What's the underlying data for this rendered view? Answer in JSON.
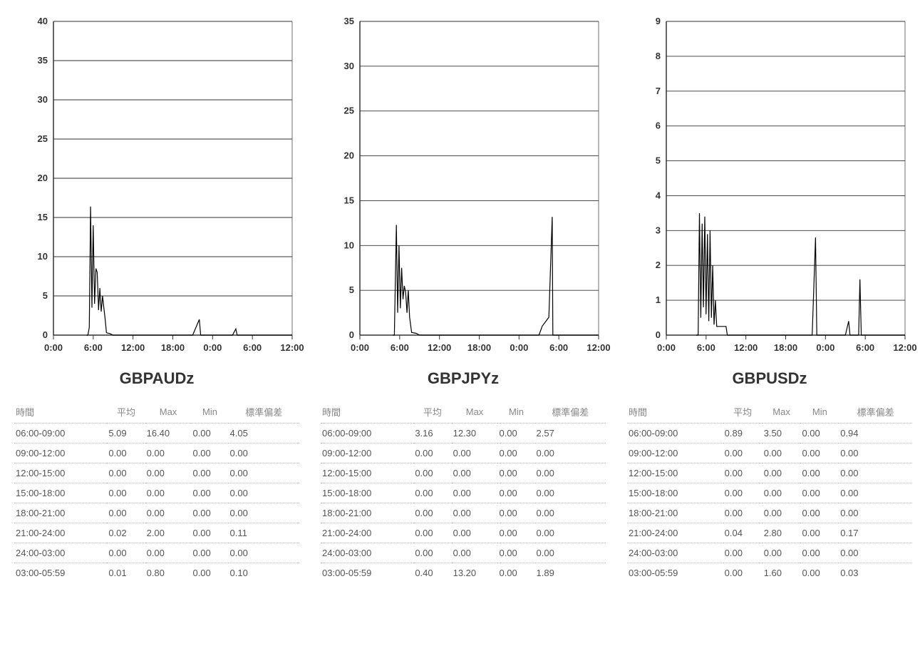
{
  "background_color": "#ffffff",
  "axis_color": "#333333",
  "grid_color": "#333333",
  "line_color": "#000000",
  "tick_font_size": 11,
  "label_font_weight": "bold",
  "label_font_size": 13,
  "title_font_size": 22,
  "table_header_color": "#888888",
  "table_text_color": "#555555",
  "table_border": "1px dotted #bbbbbb",
  "x_ticks": [
    "0:00",
    "6:00",
    "12:00",
    "18:00",
    "0:00",
    "6:00",
    "12:00"
  ],
  "table_headers": [
    "時間",
    "平均",
    "Max",
    "Min",
    "標準偏差"
  ],
  "panels": [
    {
      "title": "GBPAUDz",
      "ymax": 40,
      "ystep": 5,
      "series": [
        [
          5.0,
          0.0
        ],
        [
          5.2,
          0.0
        ],
        [
          5.4,
          1.0
        ],
        [
          5.6,
          16.4
        ],
        [
          5.8,
          3.5
        ],
        [
          6.0,
          14.0
        ],
        [
          6.2,
          4.0
        ],
        [
          6.4,
          8.5
        ],
        [
          6.6,
          8.0
        ],
        [
          6.8,
          3.2
        ],
        [
          7.0,
          6.0
        ],
        [
          7.2,
          3.0
        ],
        [
          7.4,
          5.0
        ],
        [
          7.6,
          3.5
        ],
        [
          7.8,
          2.0
        ],
        [
          8.0,
          0.3
        ],
        [
          8.5,
          0.2
        ],
        [
          9.0,
          0.0
        ],
        [
          12.0,
          0.0
        ],
        [
          18.0,
          0.0
        ],
        [
          21.0,
          0.0
        ],
        [
          22.0,
          2.0
        ],
        [
          22.2,
          0.0
        ],
        [
          24.0,
          0.0
        ],
        [
          27.0,
          0.0
        ],
        [
          27.5,
          0.8
        ],
        [
          27.7,
          0.0
        ],
        [
          30.0,
          0.0
        ],
        [
          36.0,
          0.0
        ]
      ],
      "rows": [
        [
          "06:00-09:00",
          "5.09",
          "16.40",
          "0.00",
          "4.05"
        ],
        [
          "09:00-12:00",
          "0.00",
          "0.00",
          "0.00",
          "0.00"
        ],
        [
          "12:00-15:00",
          "0.00",
          "0.00",
          "0.00",
          "0.00"
        ],
        [
          "15:00-18:00",
          "0.00",
          "0.00",
          "0.00",
          "0.00"
        ],
        [
          "18:00-21:00",
          "0.00",
          "0.00",
          "0.00",
          "0.00"
        ],
        [
          "21:00-24:00",
          "0.02",
          "2.00",
          "0.00",
          "0.11"
        ],
        [
          "24:00-03:00",
          "0.00",
          "0.00",
          "0.00",
          "0.00"
        ],
        [
          "03:00-05:59",
          "0.01",
          "0.80",
          "0.00",
          "0.10"
        ]
      ]
    },
    {
      "title": "GBPJPYz",
      "ymax": 35,
      "ystep": 5,
      "series": [
        [
          5.0,
          0.0
        ],
        [
          5.2,
          0.0
        ],
        [
          5.5,
          12.3
        ],
        [
          5.7,
          2.5
        ],
        [
          5.9,
          10.0
        ],
        [
          6.1,
          3.0
        ],
        [
          6.3,
          7.5
        ],
        [
          6.5,
          4.0
        ],
        [
          6.7,
          5.5
        ],
        [
          6.9,
          4.8
        ],
        [
          7.1,
          2.5
        ],
        [
          7.3,
          5.0
        ],
        [
          7.5,
          2.0
        ],
        [
          7.8,
          0.3
        ],
        [
          8.5,
          0.2
        ],
        [
          9.0,
          0.0
        ],
        [
          12.0,
          0.0
        ],
        [
          18.0,
          0.0
        ],
        [
          24.0,
          0.0
        ],
        [
          27.0,
          0.0
        ],
        [
          27.5,
          1.0
        ],
        [
          28.0,
          1.5
        ],
        [
          28.5,
          2.0
        ],
        [
          29.0,
          13.2
        ],
        [
          29.1,
          0.0
        ],
        [
          30.0,
          0.0
        ],
        [
          36.0,
          0.0
        ]
      ],
      "rows": [
        [
          "06:00-09:00",
          "3.16",
          "12.30",
          "0.00",
          "2.57"
        ],
        [
          "09:00-12:00",
          "0.00",
          "0.00",
          "0.00",
          "0.00"
        ],
        [
          "12:00-15:00",
          "0.00",
          "0.00",
          "0.00",
          "0.00"
        ],
        [
          "15:00-18:00",
          "0.00",
          "0.00",
          "0.00",
          "0.00"
        ],
        [
          "18:00-21:00",
          "0.00",
          "0.00",
          "0.00",
          "0.00"
        ],
        [
          "21:00-24:00",
          "0.00",
          "0.00",
          "0.00",
          "0.00"
        ],
        [
          "24:00-03:00",
          "0.00",
          "0.00",
          "0.00",
          "0.00"
        ],
        [
          "03:00-05:59",
          "0.40",
          "13.20",
          "0.00",
          "1.89"
        ]
      ]
    },
    {
      "title": "GBPUSDz",
      "ymax": 9,
      "ystep": 1,
      "series": [
        [
          4.5,
          0.0
        ],
        [
          4.8,
          0.0
        ],
        [
          5.0,
          3.5
        ],
        [
          5.2,
          0.5
        ],
        [
          5.4,
          3.2
        ],
        [
          5.6,
          0.8
        ],
        [
          5.8,
          3.4
        ],
        [
          6.0,
          0.6
        ],
        [
          6.2,
          2.9
        ],
        [
          6.4,
          0.4
        ],
        [
          6.6,
          3.0
        ],
        [
          6.8,
          0.5
        ],
        [
          7.0,
          2.0
        ],
        [
          7.2,
          0.3
        ],
        [
          7.4,
          1.0
        ],
        [
          7.6,
          0.25
        ],
        [
          8.0,
          0.25
        ],
        [
          8.5,
          0.25
        ],
        [
          9.0,
          0.25
        ],
        [
          9.2,
          0.0
        ],
        [
          12.0,
          0.0
        ],
        [
          18.0,
          0.0
        ],
        [
          22.0,
          0.0
        ],
        [
          22.5,
          2.8
        ],
        [
          22.7,
          0.0
        ],
        [
          24.0,
          0.0
        ],
        [
          27.0,
          0.0
        ],
        [
          27.5,
          0.4
        ],
        [
          27.7,
          0.0
        ],
        [
          29.0,
          0.0
        ],
        [
          29.2,
          1.6
        ],
        [
          29.4,
          0.0
        ],
        [
          30.0,
          0.0
        ],
        [
          36.0,
          0.0
        ]
      ],
      "rows": [
        [
          "06:00-09:00",
          "0.89",
          "3.50",
          "0.00",
          "0.94"
        ],
        [
          "09:00-12:00",
          "0.00",
          "0.00",
          "0.00",
          "0.00"
        ],
        [
          "12:00-15:00",
          "0.00",
          "0.00",
          "0.00",
          "0.00"
        ],
        [
          "15:00-18:00",
          "0.00",
          "0.00",
          "0.00",
          "0.00"
        ],
        [
          "18:00-21:00",
          "0.00",
          "0.00",
          "0.00",
          "0.00"
        ],
        [
          "21:00-24:00",
          "0.04",
          "2.80",
          "0.00",
          "0.17"
        ],
        [
          "24:00-03:00",
          "0.00",
          "0.00",
          "0.00",
          "0.00"
        ],
        [
          "03:00-05:59",
          "0.00",
          "1.60",
          "0.00",
          "0.03"
        ]
      ]
    }
  ]
}
